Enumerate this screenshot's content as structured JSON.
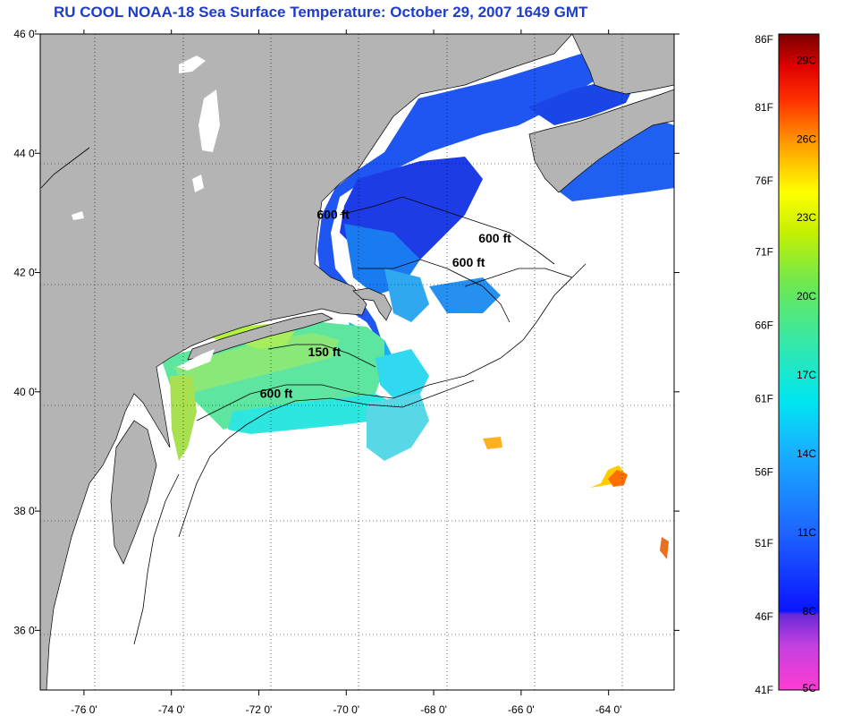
{
  "title": "RU COOL  NOAA-18  Sea Surface Temperature:  October 29, 2007 1649 GMT",
  "colors": {
    "land": "#b4b4b4",
    "ocean_nodata": "#ffffff",
    "coast": "#000000",
    "title": "#1f3cc8"
  },
  "map": {
    "lon_range": [
      -77,
      -62.5
    ],
    "lat_range": [
      35,
      46
    ],
    "lat_ticks": [
      {
        "value": 46,
        "label": "46 0'"
      },
      {
        "value": 44,
        "label": "44 0'"
      },
      {
        "value": 42,
        "label": "42 0'"
      },
      {
        "value": 40,
        "label": "40 0'"
      },
      {
        "value": 38,
        "label": "38 0'"
      },
      {
        "value": 36,
        "label": "36 0'"
      }
    ],
    "lon_ticks": [
      {
        "value": -76,
        "label": "-76 0'"
      },
      {
        "value": -74,
        "label": "-74 0'"
      },
      {
        "value": -72,
        "label": "-72 0'"
      },
      {
        "value": -70,
        "label": "-70 0'"
      },
      {
        "value": -68,
        "label": "-68 0'"
      },
      {
        "value": -66,
        "label": "-66 0'"
      },
      {
        "value": -64,
        "label": "-64 0'"
      }
    ],
    "isobath_labels": [
      {
        "text": "600 ft",
        "lon": -70.3,
        "lat": 42.9
      },
      {
        "text": "600 ft",
        "lon": -66.6,
        "lat": 42.5
      },
      {
        "text": "600 ft",
        "lon": -67.2,
        "lat": 42.1
      },
      {
        "text": "150 ft",
        "lon": -70.5,
        "lat": 40.6
      },
      {
        "text": "600 ft",
        "lon": -71.6,
        "lat": 39.9
      }
    ]
  },
  "colorbar": {
    "temp_range_c": [
      5,
      30
    ],
    "fahrenheit_labels": [
      {
        "label": "86F",
        "c": 30
      },
      {
        "label": "81F",
        "c": 27.2
      },
      {
        "label": "76F",
        "c": 24.4
      },
      {
        "label": "71F",
        "c": 21.7
      },
      {
        "label": "66F",
        "c": 18.9
      },
      {
        "label": "61F",
        "c": 16.1
      },
      {
        "label": "56F",
        "c": 13.3
      },
      {
        "label": "51F",
        "c": 10.6
      },
      {
        "label": "46F",
        "c": 7.8
      },
      {
        "label": "41F",
        "c": 5
      }
    ],
    "celsius_labels": [
      {
        "label": "29C",
        "c": 29
      },
      {
        "label": "26C",
        "c": 26
      },
      {
        "label": "23C",
        "c": 23
      },
      {
        "label": "20C",
        "c": 20
      },
      {
        "label": "17C",
        "c": 17
      },
      {
        "label": "14C",
        "c": 14
      },
      {
        "label": "11C",
        "c": 11
      },
      {
        "label": "8C",
        "c": 8
      },
      {
        "label": "5C",
        "c": 5
      }
    ]
  }
}
